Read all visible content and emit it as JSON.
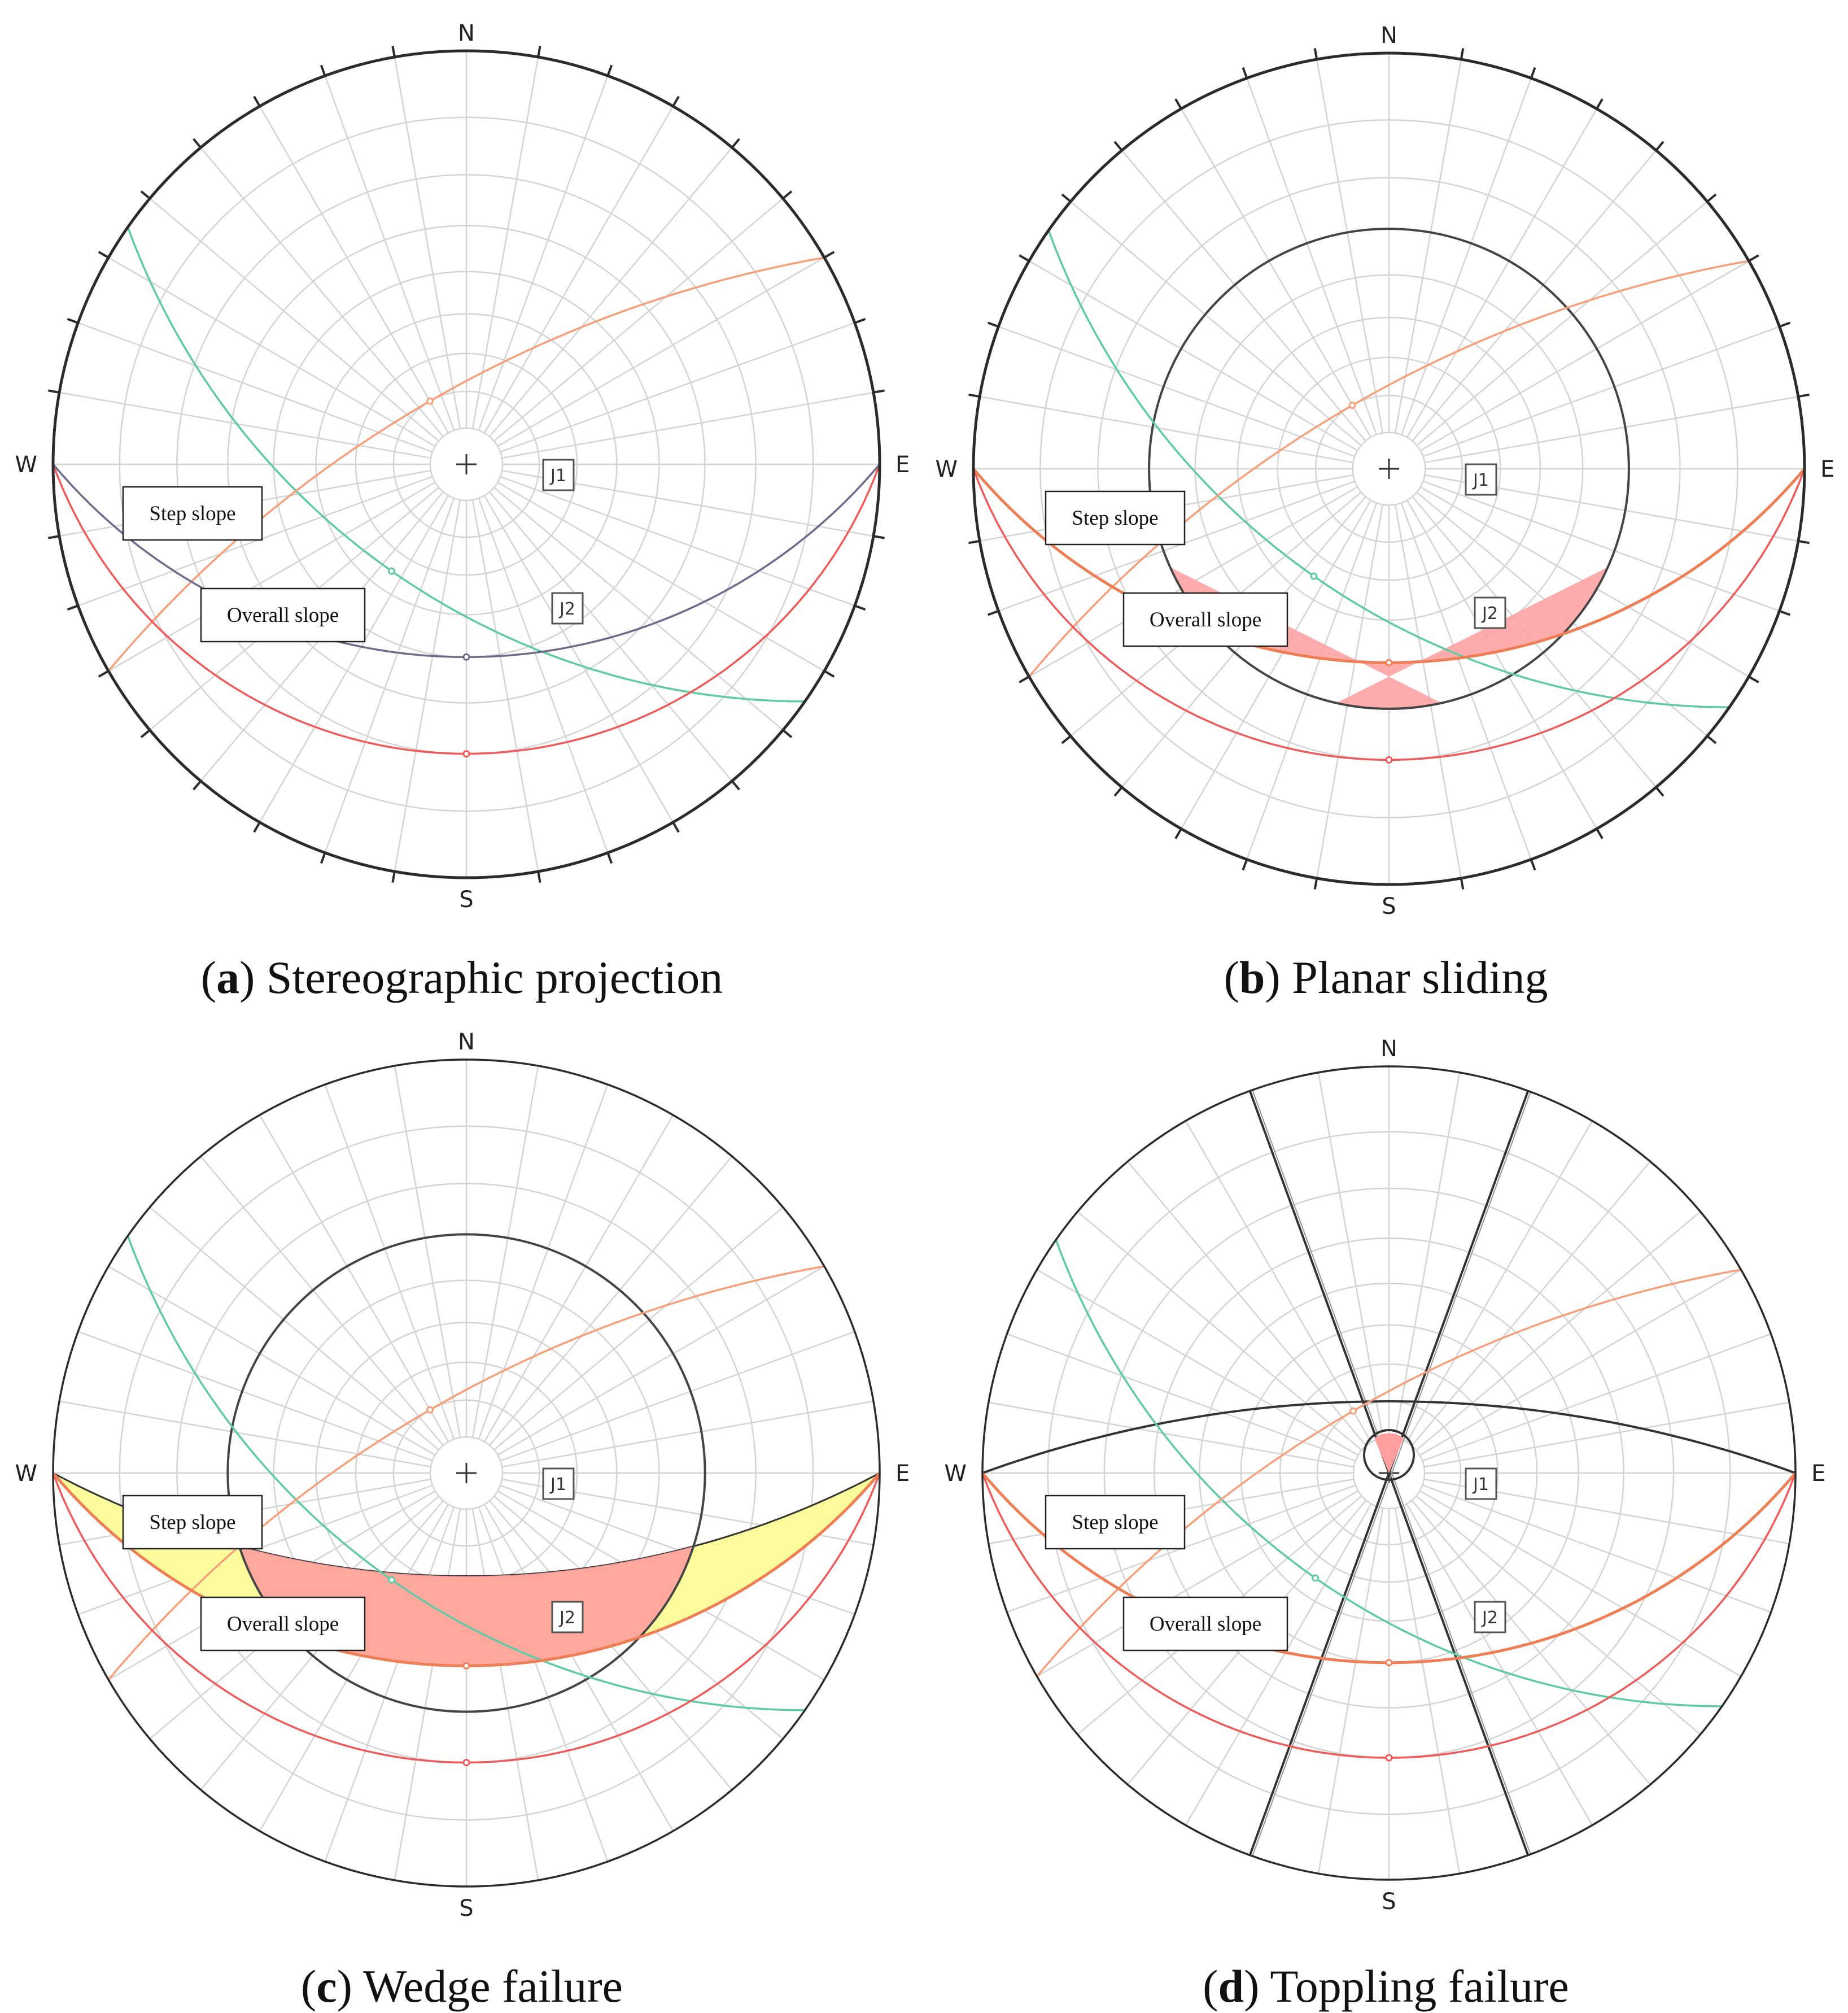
{
  "panels": [
    {
      "id": "a",
      "caption_letter": "a",
      "caption_text": "Stereographic projection",
      "directions": {
        "north": "N",
        "south": "S",
        "east": "E",
        "west": "W"
      },
      "labels": {
        "step_slope": "Step slope",
        "overall_slope": "Overall slope",
        "j1": "J1",
        "j2": "J2"
      },
      "features": [
        "stereonet-grid",
        "j1-plane",
        "j2-plane",
        "step-slope-plane",
        "overall-slope-plane"
      ]
    },
    {
      "id": "b",
      "caption_letter": "b",
      "caption_text": "Planar sliding",
      "directions": {
        "north": "N",
        "south": "S",
        "east": "E",
        "west": "W"
      },
      "labels": {
        "step_slope": "Step slope",
        "overall_slope": "Overall slope",
        "j1": "J1",
        "j2": "J2"
      },
      "features": [
        "stereonet-grid",
        "friction-circle",
        "planar-sliding-zone",
        "j1-plane",
        "j2-plane",
        "step-slope-plane",
        "overall-slope-plane"
      ]
    },
    {
      "id": "c",
      "caption_letter": "c",
      "caption_text": "Wedge failure",
      "directions": {
        "north": "N",
        "south": "S",
        "east": "E",
        "west": "W"
      },
      "labels": {
        "step_slope": "Step slope",
        "overall_slope": "Overall slope",
        "j1": "J1",
        "j2": "J2"
      },
      "features": [
        "stereonet-grid",
        "friction-circle",
        "wedge-critical-zone",
        "wedge-secondary-zone",
        "j1-plane",
        "j2-plane",
        "step-slope-plane",
        "overall-slope-plane"
      ]
    },
    {
      "id": "d",
      "caption_letter": "d",
      "caption_text": "Toppling failure",
      "directions": {
        "north": "N",
        "south": "S",
        "east": "E",
        "west": "W"
      },
      "labels": {
        "step_slope": "Step slope",
        "overall_slope": "Overall slope",
        "j1": "J1",
        "j2": "J2"
      },
      "features": [
        "stereonet-grid",
        "lateral-limits",
        "slip-limit-plane",
        "toppling-zone",
        "j1-plane",
        "j2-plane",
        "step-slope-plane",
        "overall-slope-plane"
      ]
    }
  ],
  "colors": {
    "grid": "#d4d4d4",
    "primitive": "#2b2b2b",
    "j1": "#5fcaa5",
    "j2": "#f5a07a",
    "step_slope": "#ef5a5a",
    "overall_slope": "#6e6a8c",
    "overall_slope_orange": "#f07e55",
    "critical_fill": "#ff9e9e",
    "wedge_fill": "#fbfb9c"
  }
}
